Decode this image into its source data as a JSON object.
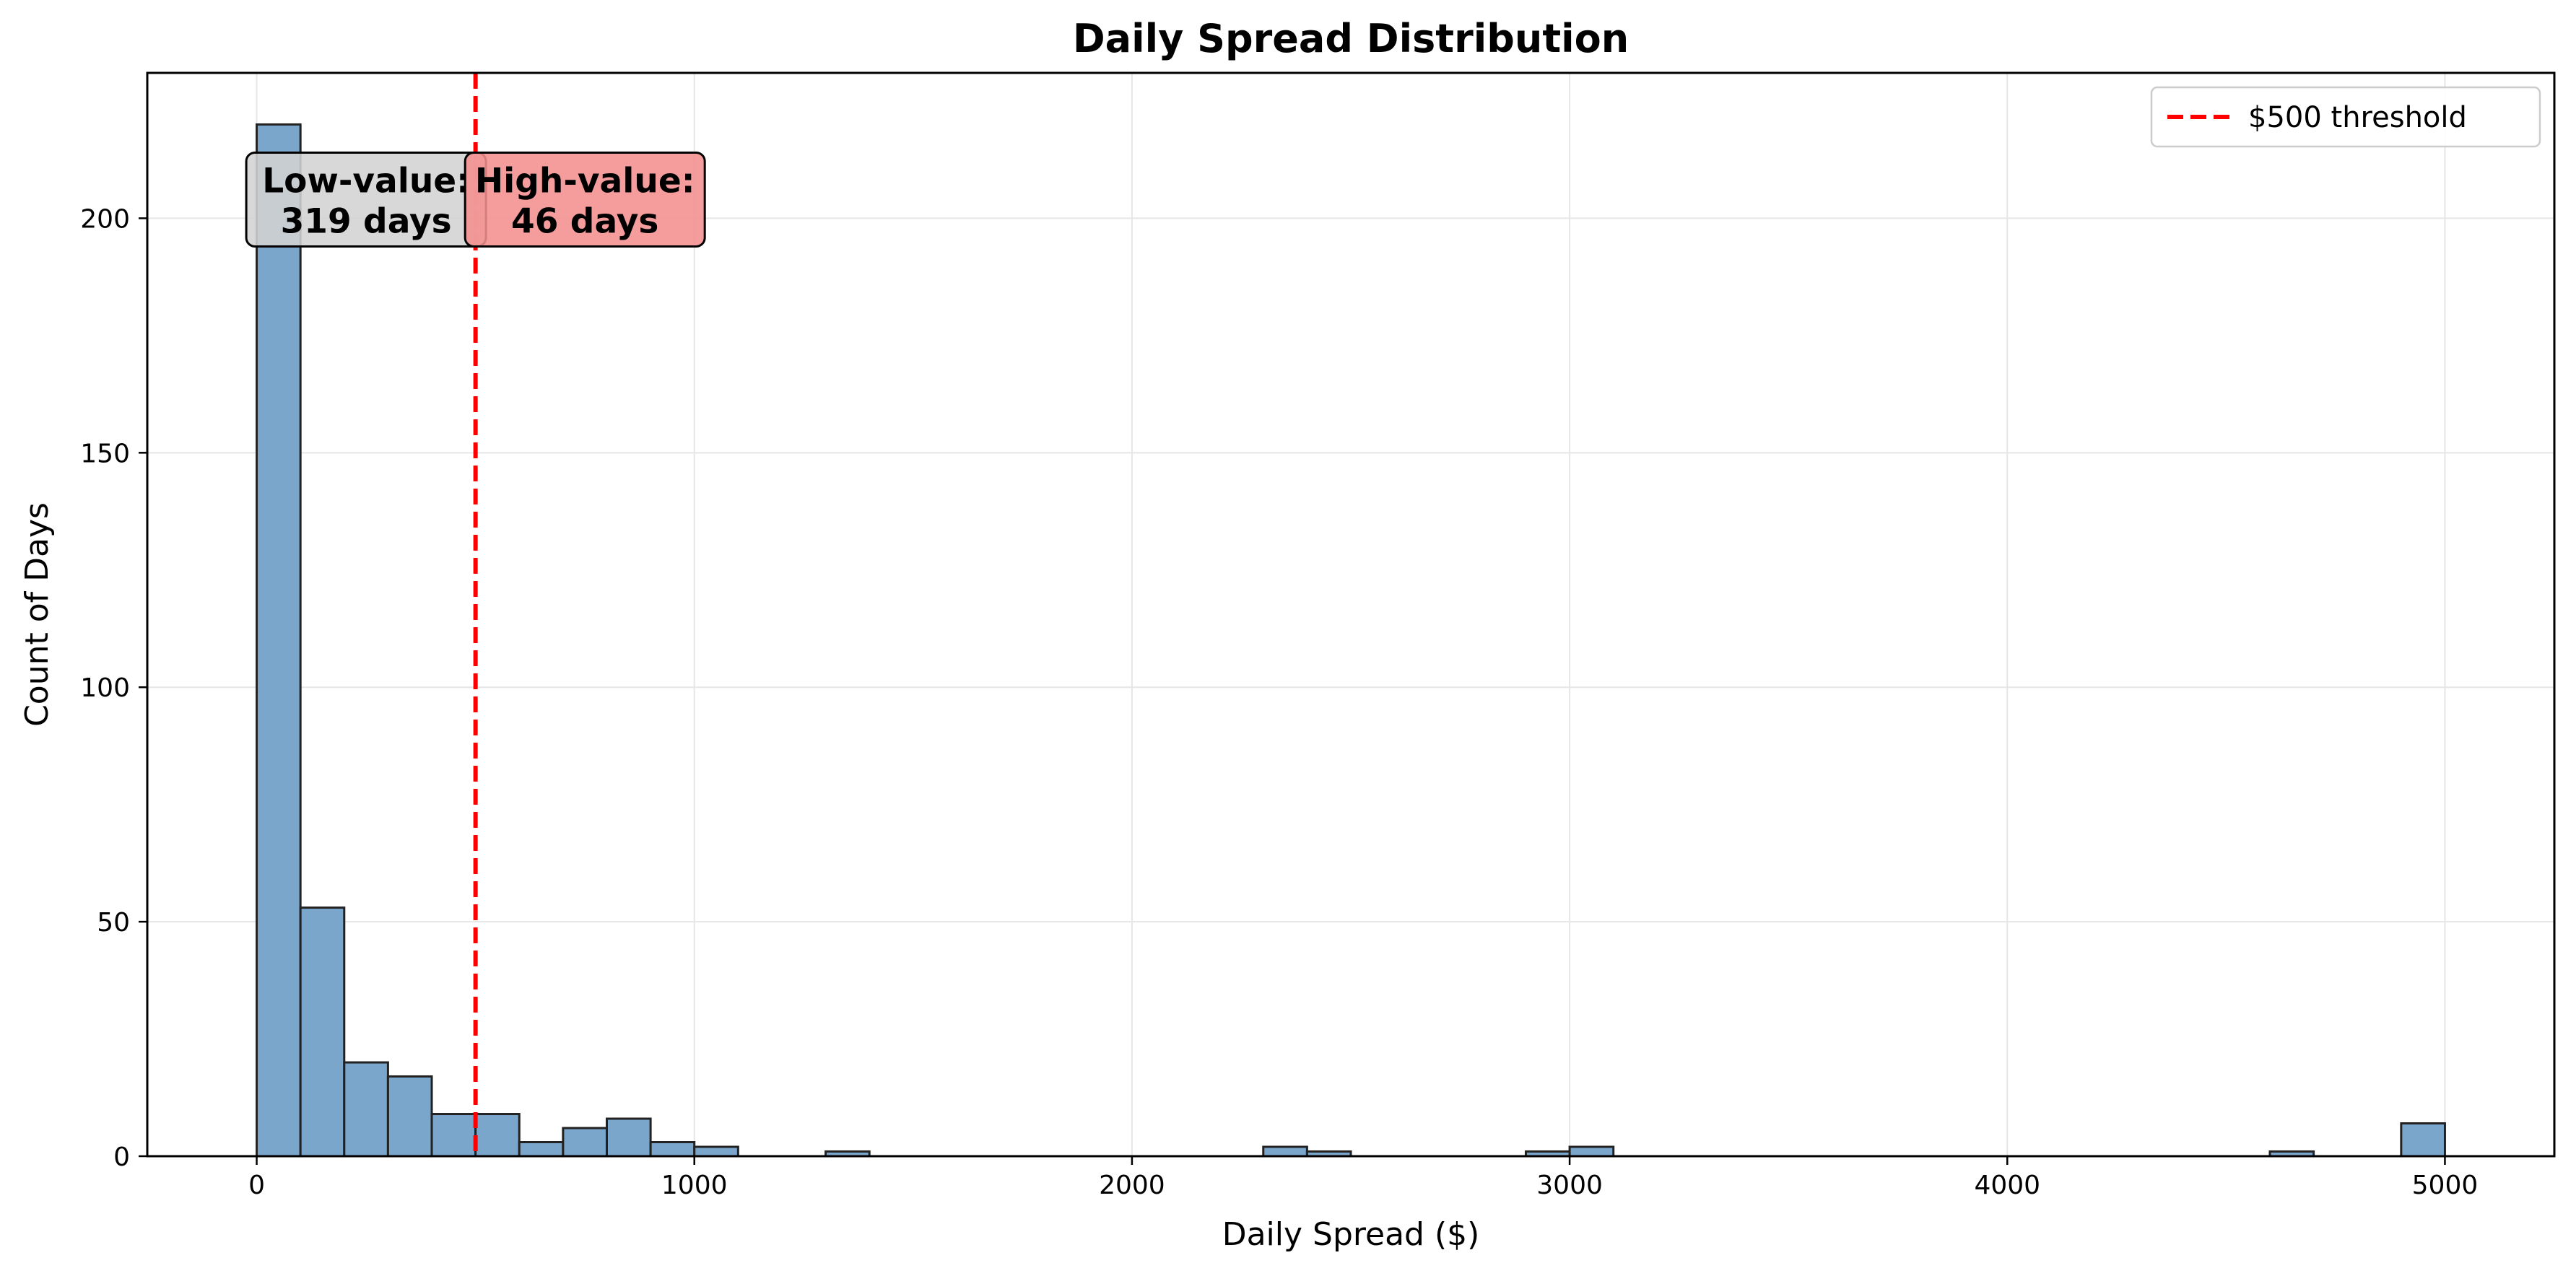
{
  "chart_data": {
    "type": "bar",
    "subtype": "histogram",
    "title": "Daily Spread Distribution",
    "xlabel": "Daily Spread ($)",
    "ylabel": "Count of Days",
    "xlim": [
      -250,
      5250
    ],
    "ylim": [
      0,
      231
    ],
    "xticks": [
      0,
      1000,
      2000,
      3000,
      4000,
      5000
    ],
    "yticks": [
      0,
      50,
      100,
      150,
      200
    ],
    "grid": true,
    "bin_width": 100,
    "bins": [
      {
        "start": 0,
        "end": 100,
        "count": 220
      },
      {
        "start": 100,
        "end": 200,
        "count": 53
      },
      {
        "start": 200,
        "end": 300,
        "count": 20
      },
      {
        "start": 300,
        "end": 400,
        "count": 17
      },
      {
        "start": 400,
        "end": 500,
        "count": 9
      },
      {
        "start": 500,
        "end": 600,
        "count": 9
      },
      {
        "start": 600,
        "end": 700,
        "count": 3
      },
      {
        "start": 700,
        "end": 800,
        "count": 6
      },
      {
        "start": 800,
        "end": 900,
        "count": 8
      },
      {
        "start": 900,
        "end": 1000,
        "count": 3
      },
      {
        "start": 1000,
        "end": 1100,
        "count": 2
      },
      {
        "start": 1300,
        "end": 1400,
        "count": 1
      },
      {
        "start": 2300,
        "end": 2400,
        "count": 2
      },
      {
        "start": 2400,
        "end": 2500,
        "count": 1
      },
      {
        "start": 2900,
        "end": 3000,
        "count": 1
      },
      {
        "start": 3000,
        "end": 3100,
        "count": 2
      },
      {
        "start": 4600,
        "end": 4700,
        "count": 1
      },
      {
        "start": 4900,
        "end": 5000,
        "count": 7
      }
    ],
    "threshold": {
      "x": 500,
      "label": "$500 threshold",
      "color": "#ff0000"
    },
    "legend_position": "top-right",
    "annotations": [
      {
        "lines": [
          "Low-value:",
          "319 days"
        ],
        "x": 250,
        "y": 204,
        "facecolor": "#d3d3d3"
      },
      {
        "lines": [
          "High-value:",
          "46 days"
        ],
        "x": 750,
        "y": 204,
        "facecolor": "#f48f8f"
      }
    ],
    "colors": {
      "bar_fill": "#7ba6cc",
      "bar_edge": "#222222",
      "grid": "#e6e6e6"
    }
  }
}
